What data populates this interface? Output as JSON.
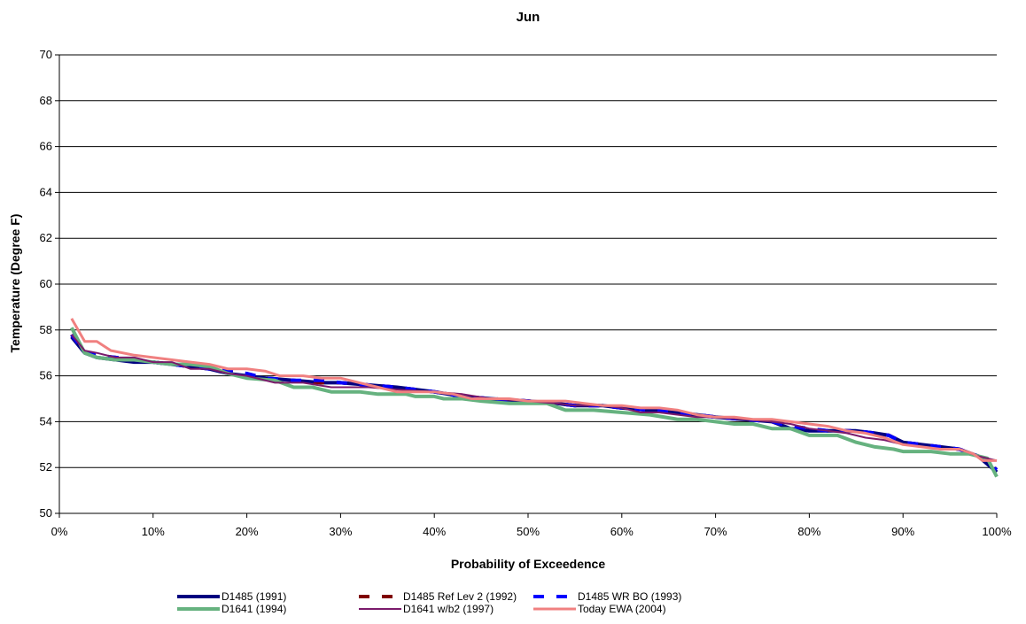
{
  "chart_data": {
    "type": "line",
    "title": "Jun",
    "xlabel": "Probability of Exceedence",
    "ylabel": "Temperature (Degree F)",
    "xlim": [
      0,
      100
    ],
    "ylim": [
      50,
      70
    ],
    "x_ticks": [
      0,
      10,
      20,
      30,
      40,
      50,
      60,
      70,
      80,
      90,
      100
    ],
    "x_tick_labels": [
      "0%",
      "10%",
      "20%",
      "30%",
      "40%",
      "50%",
      "60%",
      "70%",
      "80%",
      "90%",
      "100%"
    ],
    "y_ticks": [
      50,
      52,
      54,
      56,
      58,
      60,
      62,
      64,
      66,
      68,
      70
    ],
    "y_tick_labels": [
      "50",
      "52",
      "54",
      "56",
      "58",
      "60",
      "62",
      "64",
      "66",
      "68",
      "70"
    ],
    "grid": "horizontal",
    "legend_position": "bottom",
    "series": [
      {
        "name": "D1485 (1991)",
        "color": "#000080",
        "style": "solid",
        "width": 4,
        "points": [
          [
            1.3,
            57.7
          ],
          [
            2.7,
            57.0
          ],
          [
            4.0,
            56.8
          ],
          [
            6.0,
            56.7
          ],
          [
            8.0,
            56.6
          ],
          [
            10.0,
            56.6
          ],
          [
            12.0,
            56.5
          ],
          [
            14.0,
            56.4
          ],
          [
            16.0,
            56.3
          ],
          [
            18.0,
            56.1
          ],
          [
            20.0,
            56.0
          ],
          [
            22.0,
            55.9
          ],
          [
            25.0,
            55.8
          ],
          [
            28.0,
            55.7
          ],
          [
            30.0,
            55.7
          ],
          [
            33.0,
            55.6
          ],
          [
            36.0,
            55.5
          ],
          [
            40.0,
            55.3
          ],
          [
            43.0,
            55.1
          ],
          [
            46.0,
            55.0
          ],
          [
            50.0,
            54.9
          ],
          [
            53.0,
            54.8
          ],
          [
            55.0,
            54.7
          ],
          [
            58.0,
            54.7
          ],
          [
            60.0,
            54.6
          ],
          [
            63.0,
            54.5
          ],
          [
            66.0,
            54.4
          ],
          [
            70.0,
            54.2
          ],
          [
            73.0,
            54.1
          ],
          [
            76.0,
            54.0
          ],
          [
            78.0,
            53.7
          ],
          [
            80.0,
            53.6
          ],
          [
            82.0,
            53.6
          ],
          [
            85.0,
            53.6
          ],
          [
            87.0,
            53.5
          ],
          [
            88.5,
            53.4
          ],
          [
            90.0,
            53.1
          ],
          [
            92.0,
            53.0
          ],
          [
            94.0,
            52.9
          ],
          [
            96.0,
            52.8
          ],
          [
            98.0,
            52.5
          ],
          [
            100.0,
            51.8
          ]
        ]
      },
      {
        "name": "D1485 Ref Lev 2 (1992)",
        "color": "#800000",
        "style": "dash",
        "width": 4,
        "points": [
          [
            1.3,
            57.8
          ],
          [
            2.7,
            57.0
          ],
          [
            4.0,
            56.9
          ],
          [
            6.0,
            56.8
          ],
          [
            8.0,
            56.7
          ],
          [
            10.0,
            56.6
          ],
          [
            12.0,
            56.5
          ],
          [
            14.0,
            56.4
          ],
          [
            16.0,
            56.3
          ],
          [
            18.0,
            56.2
          ],
          [
            20.0,
            56.0
          ],
          [
            22.0,
            55.9
          ],
          [
            25.0,
            55.8
          ],
          [
            28.0,
            55.7
          ],
          [
            30.0,
            55.7
          ],
          [
            33.0,
            55.6
          ],
          [
            36.0,
            55.5
          ],
          [
            40.0,
            55.3
          ],
          [
            43.0,
            55.1
          ],
          [
            46.0,
            55.0
          ],
          [
            50.0,
            54.9
          ],
          [
            53.0,
            54.8
          ],
          [
            55.0,
            54.7
          ],
          [
            58.0,
            54.7
          ],
          [
            60.0,
            54.6
          ],
          [
            63.0,
            54.5
          ],
          [
            66.0,
            54.4
          ],
          [
            70.0,
            54.2
          ],
          [
            73.0,
            54.1
          ],
          [
            76.0,
            54.0
          ],
          [
            78.0,
            53.8
          ],
          [
            80.0,
            53.7
          ],
          [
            82.0,
            53.6
          ],
          [
            85.0,
            53.6
          ],
          [
            87.0,
            53.5
          ],
          [
            88.5,
            53.4
          ],
          [
            90.0,
            53.1
          ],
          [
            92.0,
            53.0
          ],
          [
            94.0,
            52.9
          ],
          [
            96.0,
            52.8
          ],
          [
            98.0,
            52.5
          ],
          [
            100.0,
            51.9
          ]
        ]
      },
      {
        "name": "D1485 WR BO (1993)",
        "color": "#0000ff",
        "style": "dash",
        "width": 4,
        "points": [
          [
            1.3,
            57.8
          ],
          [
            2.7,
            57.0
          ],
          [
            4.0,
            56.9
          ],
          [
            6.0,
            56.8
          ],
          [
            8.0,
            56.7
          ],
          [
            10.0,
            56.6
          ],
          [
            12.0,
            56.5
          ],
          [
            14.0,
            56.4
          ],
          [
            16.0,
            56.3
          ],
          [
            18.0,
            56.2
          ],
          [
            20.0,
            56.1
          ],
          [
            22.0,
            55.9
          ],
          [
            25.0,
            55.8
          ],
          [
            28.0,
            55.8
          ],
          [
            30.0,
            55.7
          ],
          [
            33.0,
            55.6
          ],
          [
            36.0,
            55.5
          ],
          [
            40.0,
            55.3
          ],
          [
            43.0,
            55.1
          ],
          [
            46.0,
            55.0
          ],
          [
            50.0,
            54.9
          ],
          [
            53.0,
            54.8
          ],
          [
            55.0,
            54.7
          ],
          [
            58.0,
            54.7
          ],
          [
            60.0,
            54.6
          ],
          [
            63.0,
            54.5
          ],
          [
            66.0,
            54.4
          ],
          [
            70.0,
            54.2
          ],
          [
            73.0,
            54.1
          ],
          [
            76.0,
            54.0
          ],
          [
            78.0,
            53.8
          ],
          [
            80.0,
            53.7
          ],
          [
            82.0,
            53.6
          ],
          [
            85.0,
            53.6
          ],
          [
            87.0,
            53.5
          ],
          [
            88.5,
            53.4
          ],
          [
            90.0,
            53.1
          ],
          [
            92.0,
            53.0
          ],
          [
            94.0,
            52.9
          ],
          [
            96.0,
            52.8
          ],
          [
            98.0,
            52.5
          ],
          [
            100.0,
            51.9
          ]
        ]
      },
      {
        "name": "D1641 (1994)",
        "color": "#66b27f",
        "style": "solid",
        "width": 4,
        "points": [
          [
            1.3,
            58.1
          ],
          [
            2.7,
            57.0
          ],
          [
            4.0,
            56.8
          ],
          [
            6.0,
            56.7
          ],
          [
            8.0,
            56.7
          ],
          [
            10.0,
            56.6
          ],
          [
            12.0,
            56.5
          ],
          [
            14.0,
            56.5
          ],
          [
            16.0,
            56.4
          ],
          [
            18.0,
            56.1
          ],
          [
            20.0,
            55.9
          ],
          [
            23.0,
            55.8
          ],
          [
            25.0,
            55.5
          ],
          [
            27.0,
            55.5
          ],
          [
            29.0,
            55.3
          ],
          [
            32.0,
            55.3
          ],
          [
            34.0,
            55.2
          ],
          [
            37.0,
            55.2
          ],
          [
            38.0,
            55.1
          ],
          [
            40.0,
            55.1
          ],
          [
            41.0,
            55.0
          ],
          [
            43.0,
            55.0
          ],
          [
            45.0,
            54.9
          ],
          [
            48.0,
            54.8
          ],
          [
            52.0,
            54.8
          ],
          [
            54.0,
            54.5
          ],
          [
            57.0,
            54.5
          ],
          [
            60.0,
            54.4
          ],
          [
            63.0,
            54.3
          ],
          [
            66.0,
            54.1
          ],
          [
            68.0,
            54.1
          ],
          [
            70.0,
            54.0
          ],
          [
            72.0,
            53.9
          ],
          [
            74.0,
            53.9
          ],
          [
            76.0,
            53.7
          ],
          [
            78.0,
            53.7
          ],
          [
            80.0,
            53.4
          ],
          [
            83.0,
            53.4
          ],
          [
            85.0,
            53.1
          ],
          [
            87.0,
            52.9
          ],
          [
            89.0,
            52.8
          ],
          [
            90.0,
            52.7
          ],
          [
            93.0,
            52.7
          ],
          [
            95.0,
            52.6
          ],
          [
            97.0,
            52.6
          ],
          [
            99.0,
            52.4
          ],
          [
            100.0,
            51.6
          ]
        ]
      },
      {
        "name": "D1641 w/b2 (1997)",
        "color": "#7b1b6b",
        "style": "solid",
        "width": 2,
        "points": [
          [
            1.3,
            57.8
          ],
          [
            2.7,
            57.1
          ],
          [
            4.0,
            57.0
          ],
          [
            6.0,
            56.8
          ],
          [
            8.0,
            56.8
          ],
          [
            10.0,
            56.6
          ],
          [
            12.0,
            56.6
          ],
          [
            14.0,
            56.3
          ],
          [
            16.0,
            56.3
          ],
          [
            18.0,
            56.1
          ],
          [
            20.0,
            56.0
          ],
          [
            23.0,
            55.7
          ],
          [
            26.0,
            55.7
          ],
          [
            29.0,
            55.5
          ],
          [
            31.0,
            55.5
          ],
          [
            33.0,
            55.5
          ],
          [
            36.0,
            55.4
          ],
          [
            40.0,
            55.3
          ],
          [
            43.0,
            55.2
          ],
          [
            46.0,
            55.0
          ],
          [
            50.0,
            54.9
          ],
          [
            53.0,
            54.8
          ],
          [
            55.0,
            54.7
          ],
          [
            58.0,
            54.7
          ],
          [
            60.0,
            54.6
          ],
          [
            62.0,
            54.4
          ],
          [
            64.0,
            54.4
          ],
          [
            66.0,
            54.3
          ],
          [
            68.0,
            54.2
          ],
          [
            70.0,
            54.2
          ],
          [
            73.0,
            54.1
          ],
          [
            76.0,
            54.0
          ],
          [
            78.0,
            53.9
          ],
          [
            80.0,
            53.7
          ],
          [
            82.0,
            53.6
          ],
          [
            84.0,
            53.5
          ],
          [
            86.0,
            53.3
          ],
          [
            88.0,
            53.2
          ],
          [
            90.0,
            53.0
          ],
          [
            92.0,
            52.9
          ],
          [
            94.0,
            52.8
          ],
          [
            96.0,
            52.8
          ],
          [
            98.0,
            52.5
          ],
          [
            100.0,
            52.3
          ]
        ]
      },
      {
        "name": "Today EWA (2004)",
        "color": "#f08080",
        "style": "solid",
        "width": 3,
        "points": [
          [
            1.3,
            58.5
          ],
          [
            2.7,
            57.5
          ],
          [
            4.0,
            57.5
          ],
          [
            5.5,
            57.1
          ],
          [
            8.0,
            56.9
          ],
          [
            10.0,
            56.8
          ],
          [
            12.0,
            56.7
          ],
          [
            14.0,
            56.6
          ],
          [
            16.0,
            56.5
          ],
          [
            18.0,
            56.3
          ],
          [
            20.0,
            56.3
          ],
          [
            22.0,
            56.2
          ],
          [
            23.5,
            56.0
          ],
          [
            26.0,
            56.0
          ],
          [
            28.0,
            55.9
          ],
          [
            30.0,
            55.9
          ],
          [
            32.0,
            55.7
          ],
          [
            34.0,
            55.5
          ],
          [
            36.0,
            55.3
          ],
          [
            38.0,
            55.3
          ],
          [
            40.0,
            55.3
          ],
          [
            42.0,
            55.2
          ],
          [
            44.0,
            55.0
          ],
          [
            46.0,
            55.0
          ],
          [
            48.0,
            55.0
          ],
          [
            50.0,
            54.9
          ],
          [
            52.0,
            54.9
          ],
          [
            54.0,
            54.9
          ],
          [
            56.0,
            54.8
          ],
          [
            58.0,
            54.7
          ],
          [
            60.0,
            54.7
          ],
          [
            62.0,
            54.6
          ],
          [
            64.0,
            54.6
          ],
          [
            66.0,
            54.5
          ],
          [
            68.0,
            54.3
          ],
          [
            70.0,
            54.2
          ],
          [
            72.0,
            54.2
          ],
          [
            74.0,
            54.1
          ],
          [
            76.0,
            54.1
          ],
          [
            78.0,
            54.0
          ],
          [
            80.0,
            53.9
          ],
          [
            82.0,
            53.8
          ],
          [
            84.0,
            53.6
          ],
          [
            86.0,
            53.5
          ],
          [
            88.0,
            53.3
          ],
          [
            90.0,
            53.0
          ],
          [
            92.0,
            52.9
          ],
          [
            94.0,
            52.8
          ],
          [
            96.0,
            52.8
          ],
          [
            97.5,
            52.6
          ],
          [
            98.5,
            52.3
          ],
          [
            100.0,
            52.3
          ]
        ]
      }
    ]
  }
}
